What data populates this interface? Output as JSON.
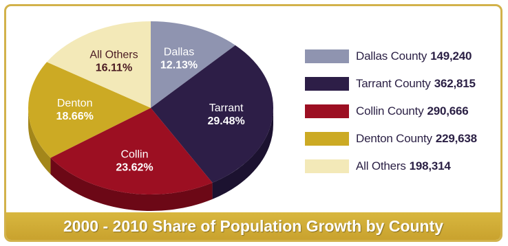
{
  "chart_data": {
    "type": "pie",
    "title": "2000 - 2010 Share of Population Growth by County",
    "slices": [
      {
        "label": "Dallas",
        "percent": "12.13%",
        "legend_label": "Dallas County",
        "value": 149240,
        "value_label": "149,240",
        "color": "#8f94b0",
        "side_color": "#6d7290",
        "text_color": "#ffffff"
      },
      {
        "label": "Tarrant",
        "percent": "29.48%",
        "legend_label": "Tarrant County",
        "value": 362815,
        "value_label": "362,815",
        "color": "#2d1e47",
        "side_color": "#1c1230",
        "text_color": "#ffffff"
      },
      {
        "label": "Collin",
        "percent": "23.62%",
        "legend_label": "Collin County",
        "value": 290666,
        "value_label": "290,666",
        "color": "#9c0f22",
        "side_color": "#6c0816",
        "text_color": "#ffffff"
      },
      {
        "label": "Denton",
        "percent": "18.66%",
        "legend_label": "Denton County",
        "value": 229638,
        "value_label": "229,638",
        "color": "#ccaa24",
        "side_color": "#a3861a",
        "text_color": "#ffffff"
      },
      {
        "label": "All Others",
        "percent": "16.11%",
        "legend_label": "All Others",
        "value": 198314,
        "value_label": "198,314",
        "color": "#f3e9b8",
        "side_color": "#d8cb8e",
        "text_color": "#4a1a22"
      }
    ],
    "legend_position": "right"
  }
}
